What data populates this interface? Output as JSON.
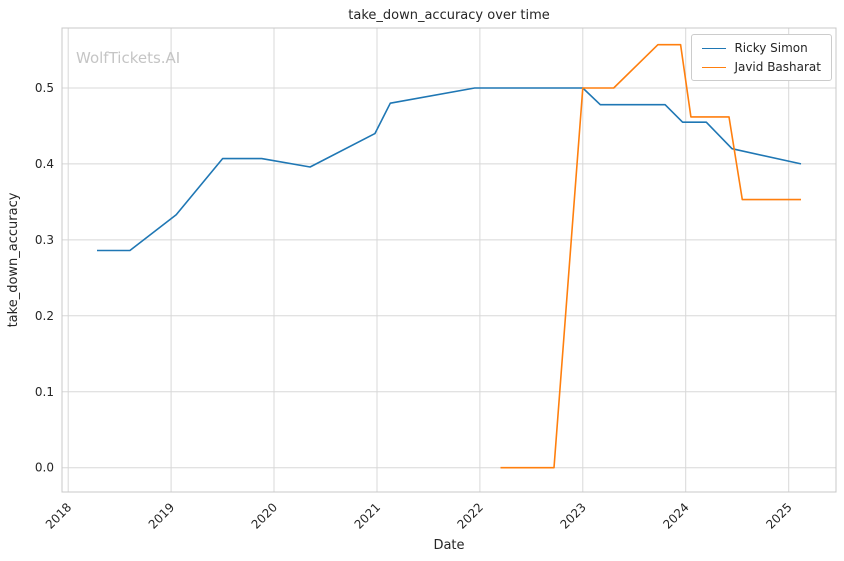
{
  "watermark": "WolfTickets.AI",
  "chart_data": {
    "type": "line",
    "title": "take_down_accuracy over time",
    "xlabel": "Date",
    "ylabel": "take_down_accuracy",
    "xlim": [
      2017.94,
      2025.46
    ],
    "ylim": [
      -0.032,
      0.579
    ],
    "xticks": [
      2018,
      2019,
      2020,
      2021,
      2022,
      2023,
      2024,
      2025
    ],
    "yticks": [
      0,
      0.1,
      0.2,
      0.3,
      0.4,
      0.5
    ],
    "grid": true,
    "legend_position": "upper right",
    "colors": {
      "background": "#ffffff",
      "grid": "#d8d8d8",
      "border": "#c8c8c8",
      "tick_label": "#262626",
      "title": "#262626",
      "watermark": "#c5c5c5"
    },
    "series": [
      {
        "name": "Ricky Simon",
        "color": "#1f77b4",
        "x": [
          2018.28,
          2018.6,
          2019.05,
          2019.5,
          2019.88,
          2020.35,
          2020.98,
          2021.13,
          2021.95,
          2023.0,
          2023.17,
          2023.8,
          2023.97,
          2024.2,
          2024.45,
          2025.12
        ],
        "y": [
          0.286,
          0.286,
          0.333,
          0.407,
          0.407,
          0.396,
          0.44,
          0.48,
          0.5,
          0.5,
          0.478,
          0.478,
          0.455,
          0.455,
          0.42,
          0.4
        ]
      },
      {
        "name": "Javid Basharat",
        "color": "#ff7f0e",
        "x": [
          2022.2,
          2022.72,
          2023.0,
          2023.3,
          2023.73,
          2023.95,
          2024.05,
          2024.42,
          2024.55,
          2025.12
        ],
        "y": [
          0.0,
          0.0,
          0.5,
          0.5,
          0.557,
          0.557,
          0.462,
          0.462,
          0.353,
          0.353
        ]
      }
    ]
  }
}
